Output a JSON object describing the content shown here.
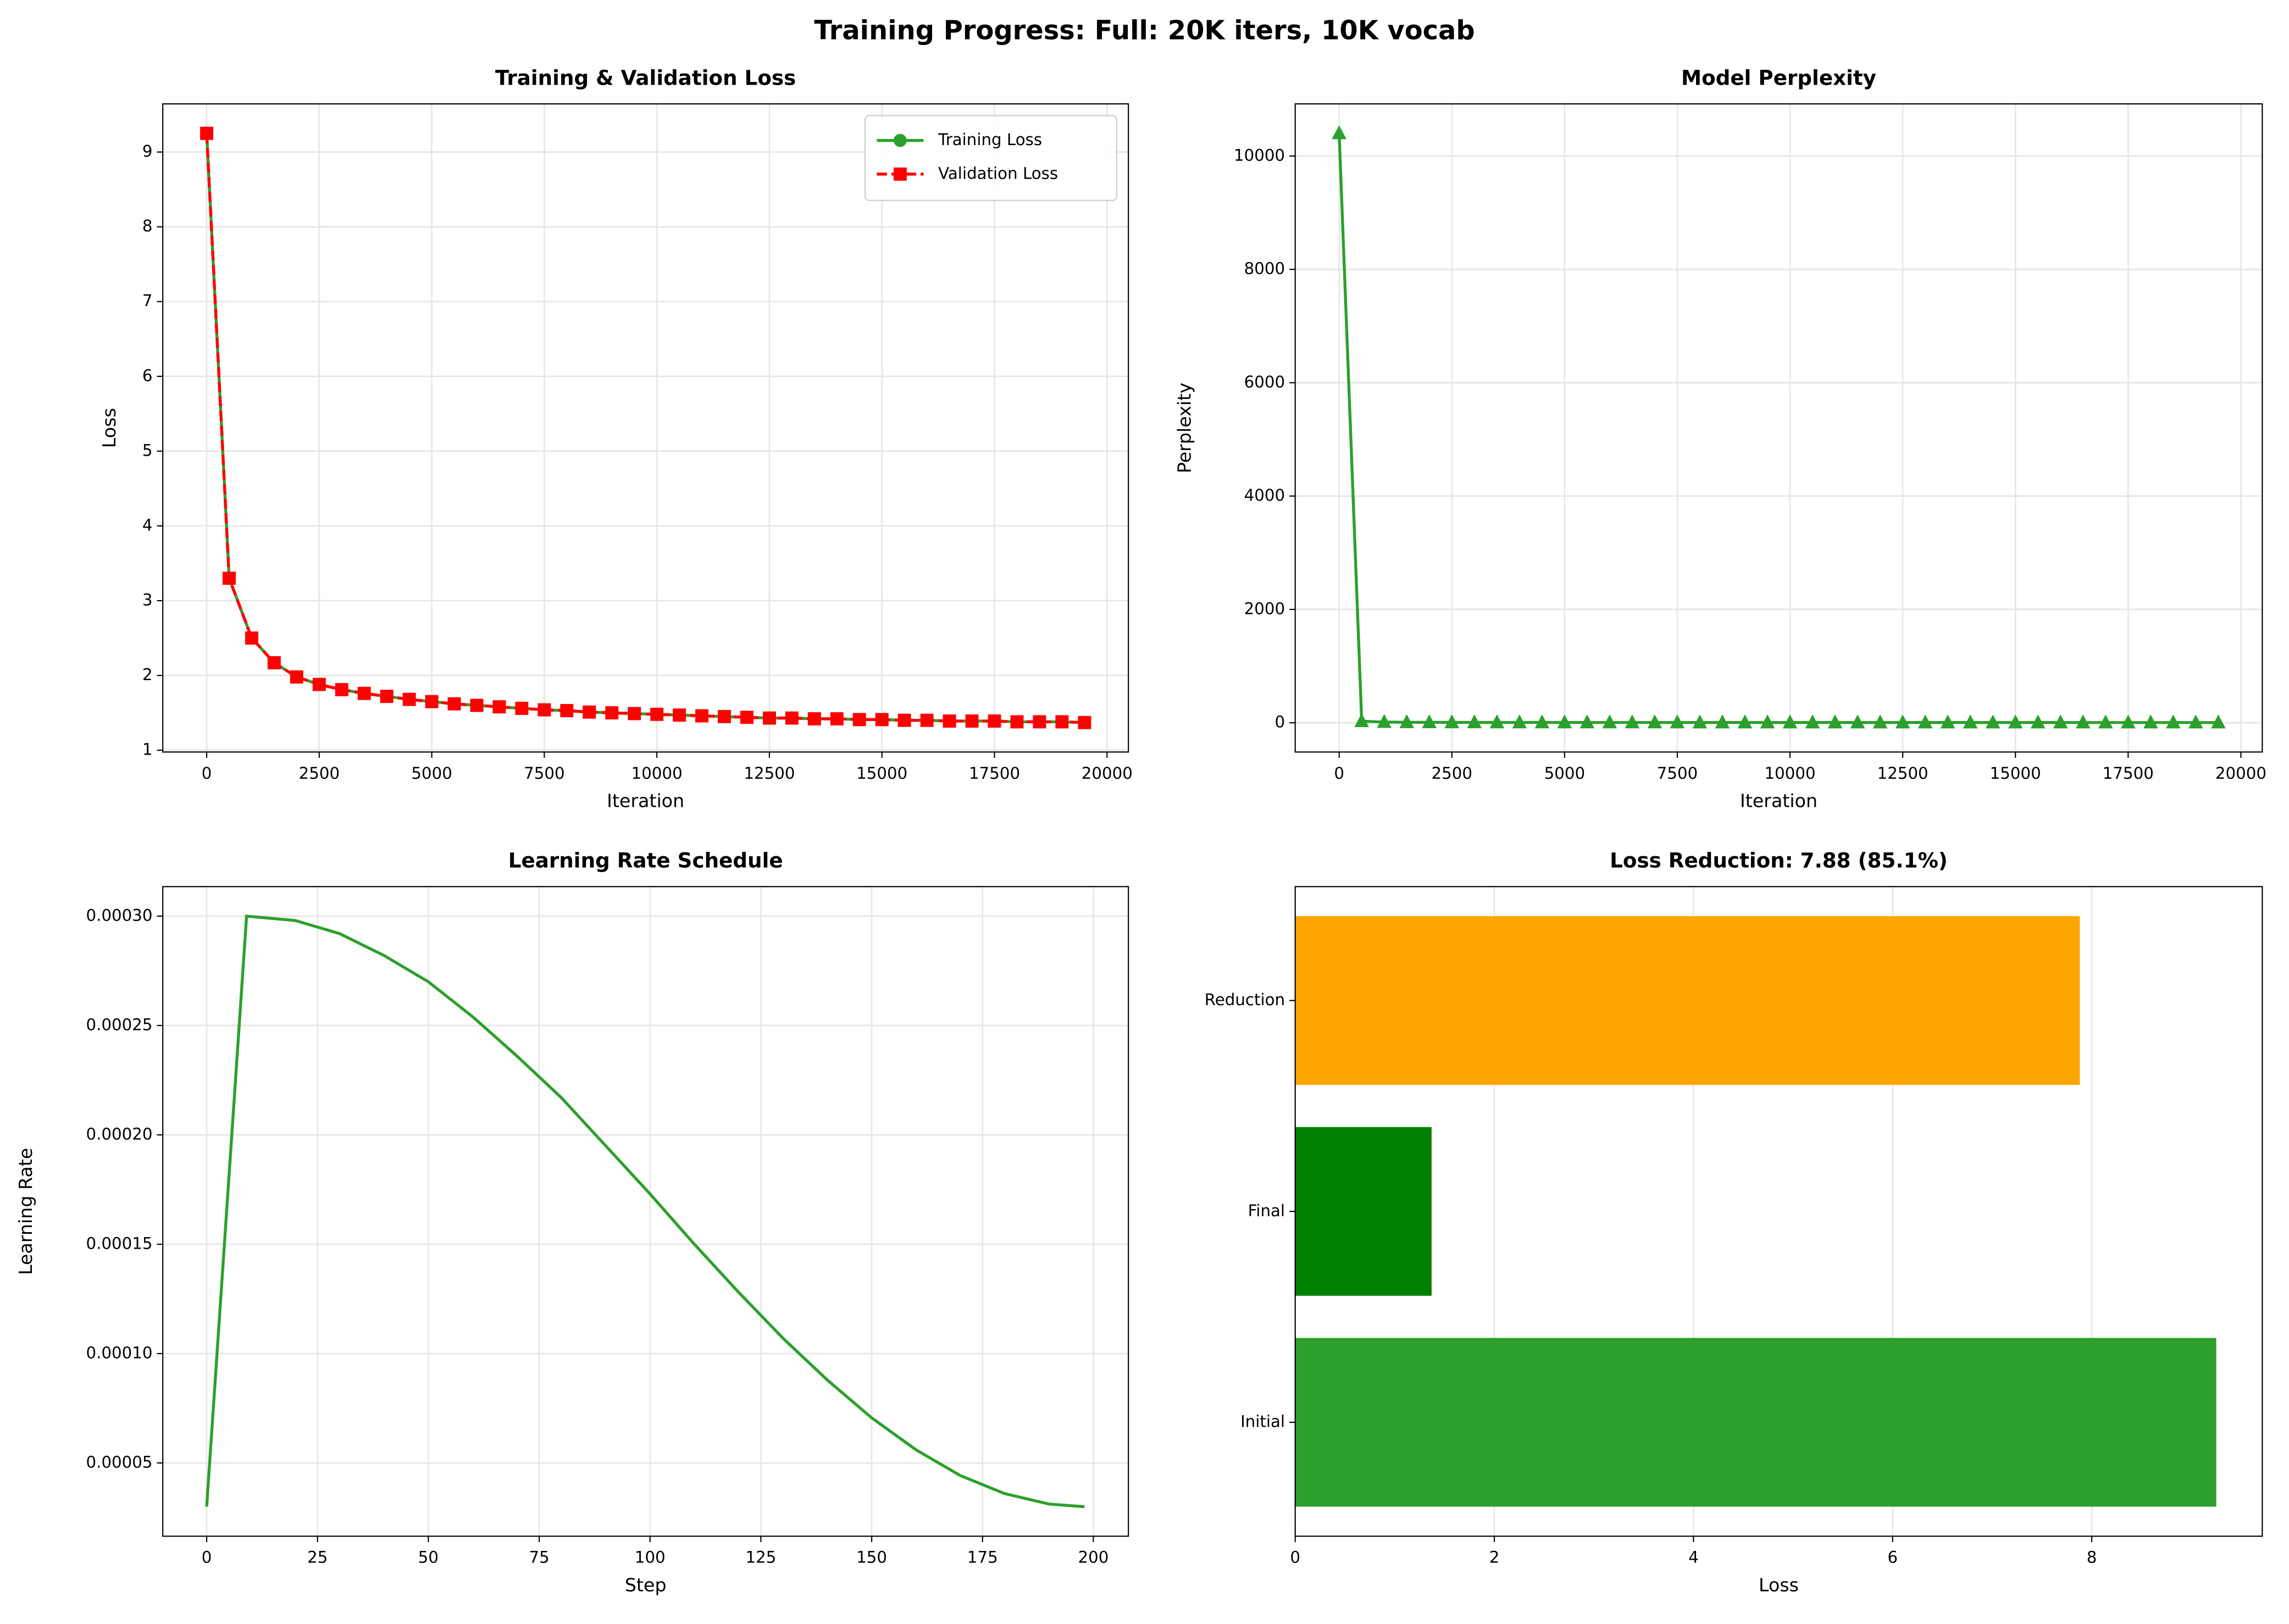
{
  "title": "Training Progress: Full: 20K iters, 10K vocab",
  "chart_data": [
    {
      "type": "line",
      "title": "Training & Validation Loss",
      "x_label": "Iteration",
      "y_label": "Loss",
      "x": [
        0,
        500,
        1000,
        1500,
        2000,
        2500,
        3000,
        3500,
        4000,
        4500,
        5000,
        5500,
        6000,
        6500,
        7000,
        7500,
        8000,
        8500,
        9000,
        9500,
        10000,
        10500,
        11000,
        11500,
        12000,
        12500,
        13000,
        13500,
        14000,
        14500,
        15000,
        15500,
        16000,
        16500,
        17000,
        17500,
        18000,
        18500,
        19000,
        19500
      ],
      "series": [
        {
          "name": "Training Loss",
          "color": "#2ca02c",
          "marker": "circle",
          "linestyle": "solid",
          "values": [
            9.25,
            3.3,
            2.5,
            2.17,
            1.98,
            1.88,
            1.81,
            1.76,
            1.72,
            1.68,
            1.65,
            1.62,
            1.6,
            1.58,
            1.56,
            1.54,
            1.53,
            1.51,
            1.5,
            1.49,
            1.48,
            1.47,
            1.46,
            1.45,
            1.44,
            1.43,
            1.43,
            1.42,
            1.42,
            1.41,
            1.41,
            1.4,
            1.4,
            1.39,
            1.39,
            1.39,
            1.38,
            1.38,
            1.38,
            1.37
          ]
        },
        {
          "name": "Validation Loss",
          "color": "#ff0000",
          "marker": "square",
          "linestyle": "dashed",
          "values": [
            9.25,
            3.3,
            2.5,
            2.17,
            1.98,
            1.88,
            1.81,
            1.76,
            1.72,
            1.68,
            1.65,
            1.62,
            1.6,
            1.58,
            1.56,
            1.54,
            1.53,
            1.51,
            1.5,
            1.49,
            1.48,
            1.47,
            1.46,
            1.45,
            1.44,
            1.43,
            1.43,
            1.42,
            1.42,
            1.41,
            1.41,
            1.4,
            1.4,
            1.39,
            1.39,
            1.39,
            1.38,
            1.38,
            1.38,
            1.37
          ]
        }
      ],
      "xlim": [
        -975,
        20475
      ],
      "xticks": [
        0,
        2500,
        5000,
        7500,
        10000,
        12500,
        15000,
        17500,
        20000
      ],
      "ylim": [
        0.976,
        9.644
      ],
      "yticks": [
        1,
        2,
        3,
        4,
        5,
        6,
        7,
        8,
        9
      ],
      "grid": true,
      "legend": "upper right"
    },
    {
      "type": "line",
      "title": "Model Perplexity",
      "x_label": "Iteration",
      "y_label": "Perplexity",
      "x": [
        0,
        500,
        1000,
        1500,
        2000,
        2500,
        3000,
        3500,
        4000,
        4500,
        5000,
        5500,
        6000,
        6500,
        7000,
        7500,
        8000,
        8500,
        9000,
        9500,
        10000,
        10500,
        11000,
        11500,
        12000,
        12500,
        13000,
        13500,
        14000,
        14500,
        15000,
        15500,
        16000,
        16500,
        17000,
        17500,
        18000,
        18500,
        19000,
        19500
      ],
      "series": [
        {
          "color": "#2ca02c",
          "marker": "triangle",
          "linestyle": "solid",
          "values": [
            10400,
            27.1,
            12.2,
            8.8,
            7.2,
            6.6,
            6.1,
            5.8,
            5.6,
            5.4,
            5.2,
            5.1,
            5,
            4.9,
            4.8,
            4.7,
            4.6,
            4.5,
            4.5,
            4.4,
            4.4,
            4.3,
            4.3,
            4.3,
            4.2,
            4.2,
            4.2,
            4.1,
            4.1,
            4.1,
            4.1,
            4.1,
            4.1,
            4,
            4,
            4,
            4,
            4,
            4,
            3.9
          ]
        }
      ],
      "xlim": [
        -975,
        20475
      ],
      "xticks": [
        0,
        2500,
        5000,
        7500,
        10000,
        12500,
        15000,
        17500,
        20000
      ],
      "ylim": [
        -516,
        10920
      ],
      "yticks": [
        0,
        2000,
        4000,
        6000,
        8000,
        10000
      ],
      "grid": true
    },
    {
      "type": "line",
      "title": "Learning Rate Schedule",
      "x_label": "Step",
      "y_label": "Learning Rate",
      "x": [
        0,
        9,
        20,
        30,
        40,
        50,
        60,
        70,
        80,
        90,
        100,
        110,
        120,
        130,
        140,
        150,
        160,
        170,
        180,
        190,
        198
      ],
      "series": [
        {
          "color": "#2ca02c",
          "linestyle": "solid",
          "values": [
            3e-05,
            0.0003,
            0.000298,
            0.000292,
            0.000282,
            0.00027,
            0.000254,
            0.000236,
            0.000217,
            0.000195,
            0.000173,
            0.00015,
            0.000128,
            0.000107,
            8.79e-05,
            7.06e-05,
            5.6e-05,
            4.42e-05,
            3.6e-05,
            3.12e-05,
            3e-05
          ]
        }
      ],
      "xlim": [
        -9.9,
        207.9
      ],
      "xticks": [
        0,
        25,
        50,
        75,
        100,
        125,
        150,
        175,
        200
      ],
      "ylim": [
        1.65e-05,
        0.0003135
      ],
      "yticks": [
        {
          "value": 5e-05,
          "label": "0.00005"
        },
        {
          "value": 0.0001,
          "label": "0.00010"
        },
        {
          "value": 0.00015,
          "label": "0.00015"
        },
        {
          "value": 0.0002,
          "label": "0.00020"
        },
        {
          "value": 0.00025,
          "label": "0.00025"
        },
        {
          "value": 0.0003,
          "label": "0.00030"
        }
      ],
      "grid": true
    },
    {
      "type": "barh",
      "title": "Loss Reduction: 7.88 (85.1%)",
      "x_label": "Loss",
      "categories": [
        "Initial",
        "Final",
        "Reduction"
      ],
      "values": [
        9.25,
        1.37,
        7.88
      ],
      "colors": [
        "#2ca02c",
        "#008000",
        "#ffa500"
      ],
      "xlim": [
        0,
        9.7125
      ],
      "xticks": [
        0,
        2,
        4,
        6,
        8
      ],
      "grid": true
    }
  ]
}
